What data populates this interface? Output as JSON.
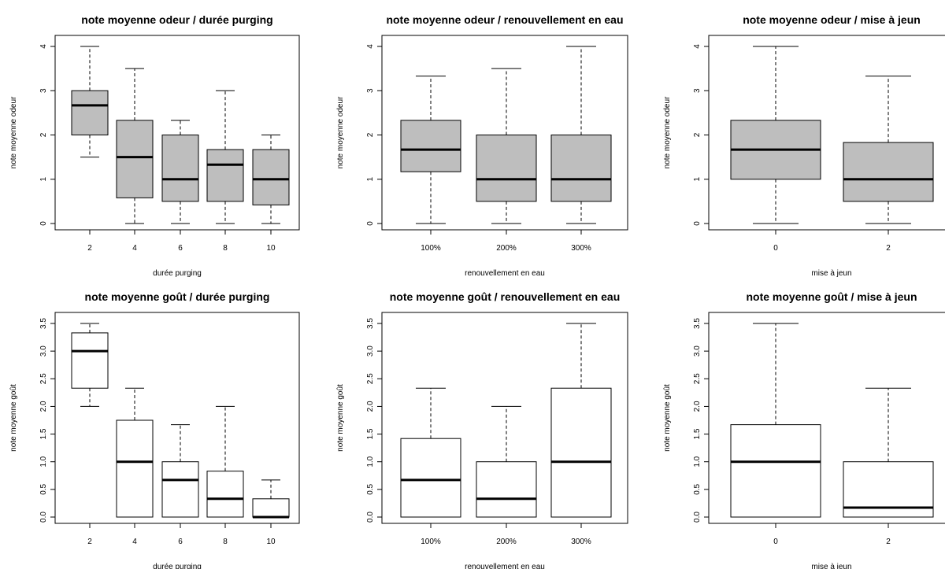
{
  "chart_data": [
    {
      "type": "boxplot",
      "title": "note moyenne odeur / durée purging",
      "xlabel": "durée purging",
      "ylabel": "note moyenne odeur",
      "ylim": [
        0,
        4
      ],
      "yticks": [
        "0",
        "1",
        "2",
        "3",
        "4"
      ],
      "box_fill": "#bebebe",
      "categories": [
        "2",
        "4",
        "6",
        "8",
        "10"
      ],
      "boxes": [
        {
          "min": 1.5,
          "q1": 2.0,
          "median": 2.67,
          "q3": 3.0,
          "max": 4.0
        },
        {
          "min": 0.0,
          "q1": 0.58,
          "median": 1.5,
          "q3": 2.33,
          "max": 3.5
        },
        {
          "min": 0.0,
          "q1": 0.5,
          "median": 1.0,
          "q3": 2.0,
          "max": 2.33
        },
        {
          "min": 0.0,
          "q1": 0.5,
          "median": 1.33,
          "q3": 1.67,
          "max": 3.0
        },
        {
          "min": 0.0,
          "q1": 0.42,
          "median": 1.0,
          "q3": 1.67,
          "max": 2.0
        }
      ]
    },
    {
      "type": "boxplot",
      "title": "note moyenne odeur / renouvellement en eau",
      "xlabel": "renouvellement en eau",
      "ylabel": "note moyenne odeur",
      "ylim": [
        0,
        4
      ],
      "yticks": [
        "0",
        "1",
        "2",
        "3",
        "4"
      ],
      "box_fill": "#bebebe",
      "categories": [
        "100%",
        "200%",
        "300%"
      ],
      "boxes": [
        {
          "min": 0.0,
          "q1": 1.17,
          "median": 1.67,
          "q3": 2.33,
          "max": 3.33
        },
        {
          "min": 0.0,
          "q1": 0.5,
          "median": 1.0,
          "q3": 2.0,
          "max": 3.5
        },
        {
          "min": 0.0,
          "q1": 0.5,
          "median": 1.0,
          "q3": 2.0,
          "max": 4.0
        }
      ]
    },
    {
      "type": "boxplot",
      "title": "note moyenne odeur / mise à jeun",
      "xlabel": "mise à jeun",
      "ylabel": "note moyenne odeur",
      "ylim": [
        0,
        4
      ],
      "yticks": [
        "0",
        "1",
        "2",
        "3",
        "4"
      ],
      "box_fill": "#bebebe",
      "categories": [
        "0",
        "2"
      ],
      "boxes": [
        {
          "min": 0.0,
          "q1": 1.0,
          "median": 1.67,
          "q3": 2.33,
          "max": 4.0
        },
        {
          "min": 0.0,
          "q1": 0.5,
          "median": 1.0,
          "q3": 1.83,
          "max": 3.33
        }
      ]
    },
    {
      "type": "boxplot",
      "title": "note moyenne goût / durée purging",
      "xlabel": "durée purging",
      "ylabel": "note moyenne goût",
      "ylim": [
        0,
        3.5
      ],
      "yticks": [
        "0.0",
        "0.5",
        "1.0",
        "1.5",
        "2.0",
        "2.5",
        "3.0",
        "3.5"
      ],
      "box_fill": "#ffffff",
      "categories": [
        "2",
        "4",
        "6",
        "8",
        "10"
      ],
      "boxes": [
        {
          "min": 2.0,
          "q1": 2.33,
          "median": 3.0,
          "q3": 3.33,
          "max": 3.5
        },
        {
          "min": 0.0,
          "q1": 0.0,
          "median": 1.0,
          "q3": 1.75,
          "max": 2.33
        },
        {
          "min": 0.0,
          "q1": 0.0,
          "median": 0.67,
          "q3": 1.0,
          "max": 1.67
        },
        {
          "min": 0.0,
          "q1": 0.0,
          "median": 0.33,
          "q3": 0.83,
          "max": 2.0
        },
        {
          "min": 0.0,
          "q1": 0.0,
          "median": 0.0,
          "q3": 0.33,
          "max": 0.67
        }
      ]
    },
    {
      "type": "boxplot",
      "title": "note moyenne goût / renouvellement en eau",
      "xlabel": "renouvellement en eau",
      "ylabel": "note moyenne goût",
      "ylim": [
        0,
        3.5
      ],
      "yticks": [
        "0.0",
        "0.5",
        "1.0",
        "1.5",
        "2.0",
        "2.5",
        "3.0",
        "3.5"
      ],
      "box_fill": "#ffffff",
      "categories": [
        "100%",
        "200%",
        "300%"
      ],
      "boxes": [
        {
          "min": 0.0,
          "q1": 0.0,
          "median": 0.67,
          "q3": 1.42,
          "max": 2.33
        },
        {
          "min": 0.0,
          "q1": 0.0,
          "median": 0.33,
          "q3": 1.0,
          "max": 2.0
        },
        {
          "min": 0.0,
          "q1": 0.0,
          "median": 1.0,
          "q3": 2.33,
          "max": 3.5
        }
      ]
    },
    {
      "type": "boxplot",
      "title": "note moyenne goût / mise à jeun",
      "xlabel": "mise à jeun",
      "ylabel": "note moyenne goût",
      "ylim": [
        0,
        3.5
      ],
      "yticks": [
        "0.0",
        "0.5",
        "1.0",
        "1.5",
        "2.0",
        "2.5",
        "3.0",
        "3.5"
      ],
      "box_fill": "#ffffff",
      "categories": [
        "0",
        "2"
      ],
      "boxes": [
        {
          "min": 0.0,
          "q1": 0.0,
          "median": 1.0,
          "q3": 1.67,
          "max": 3.5
        },
        {
          "min": 0.0,
          "q1": 0.0,
          "median": 0.17,
          "q3": 1.0,
          "max": 2.33
        }
      ]
    }
  ]
}
